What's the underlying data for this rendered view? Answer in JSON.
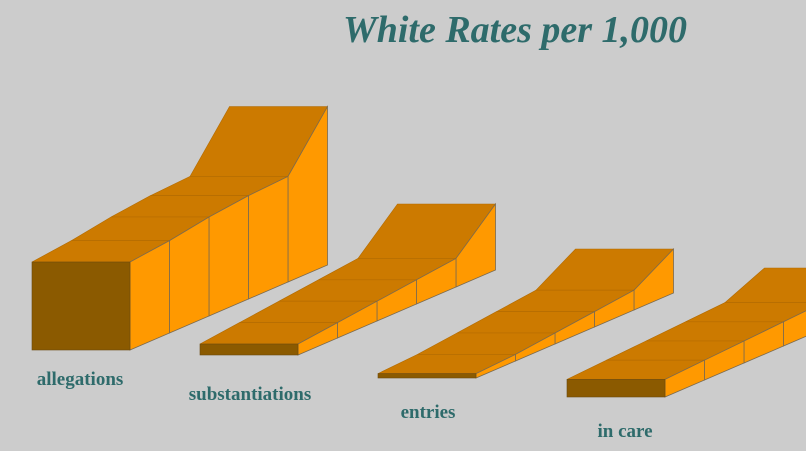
{
  "chart_data": {
    "type": "ribbon3d",
    "title": "White Rates per 1,000",
    "categories": [
      "allegations",
      "substantiations",
      "entries",
      "in care"
    ],
    "values": [
      [
        40,
        42,
        45,
        47,
        48,
        72
      ],
      [
        5,
        7,
        9,
        11,
        13,
        30
      ],
      [
        2,
        3,
        5,
        7,
        9,
        20
      ],
      [
        8,
        9,
        10,
        11,
        12,
        20
      ]
    ],
    "color": "#ff9900"
  }
}
